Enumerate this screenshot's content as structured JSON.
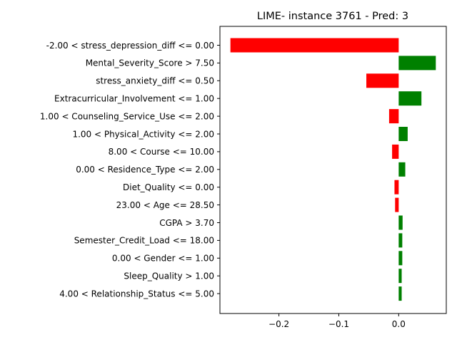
{
  "chart_data": {
    "type": "bar",
    "orientation": "horizontal",
    "title": "LIME- instance 3761 - Pred: 3",
    "xlabel": "",
    "ylabel": "",
    "xlim": [
      -0.2985,
      0.0795
    ],
    "xticks": [
      -0.2,
      -0.1,
      0.0
    ],
    "xtick_labels": [
      "−0.2",
      "−0.1",
      "0.0"
    ],
    "grid": false,
    "colors": {
      "positive": "#008000",
      "negative": "#ff0000"
    },
    "categories": [
      "-2.00 < stress_depression_diff <= 0.00",
      "Mental_Severity_Score > 7.50",
      "stress_anxiety_diff <= 0.50",
      "Extracurricular_Involvement <= 1.00",
      "1.00 < Counseling_Service_Use <= 2.00",
      "1.00 < Physical_Activity <= 2.00",
      "8.00 < Course <= 10.00",
      "0.00 < Residence_Type <= 2.00",
      "Diet_Quality <= 0.00",
      "23.00 < Age <= 28.50",
      "CGPA > 3.70",
      "Semester_Credit_Load <= 18.00",
      "0.00 < Gender <= 1.00",
      "Sleep_Quality > 1.00",
      "4.00 < Relationship_Status <= 5.00"
    ],
    "values": [
      -0.281,
      0.062,
      -0.054,
      0.038,
      -0.016,
      0.015,
      -0.011,
      0.011,
      -0.007,
      -0.006,
      0.0065,
      0.006,
      0.006,
      0.005,
      0.005
    ]
  }
}
